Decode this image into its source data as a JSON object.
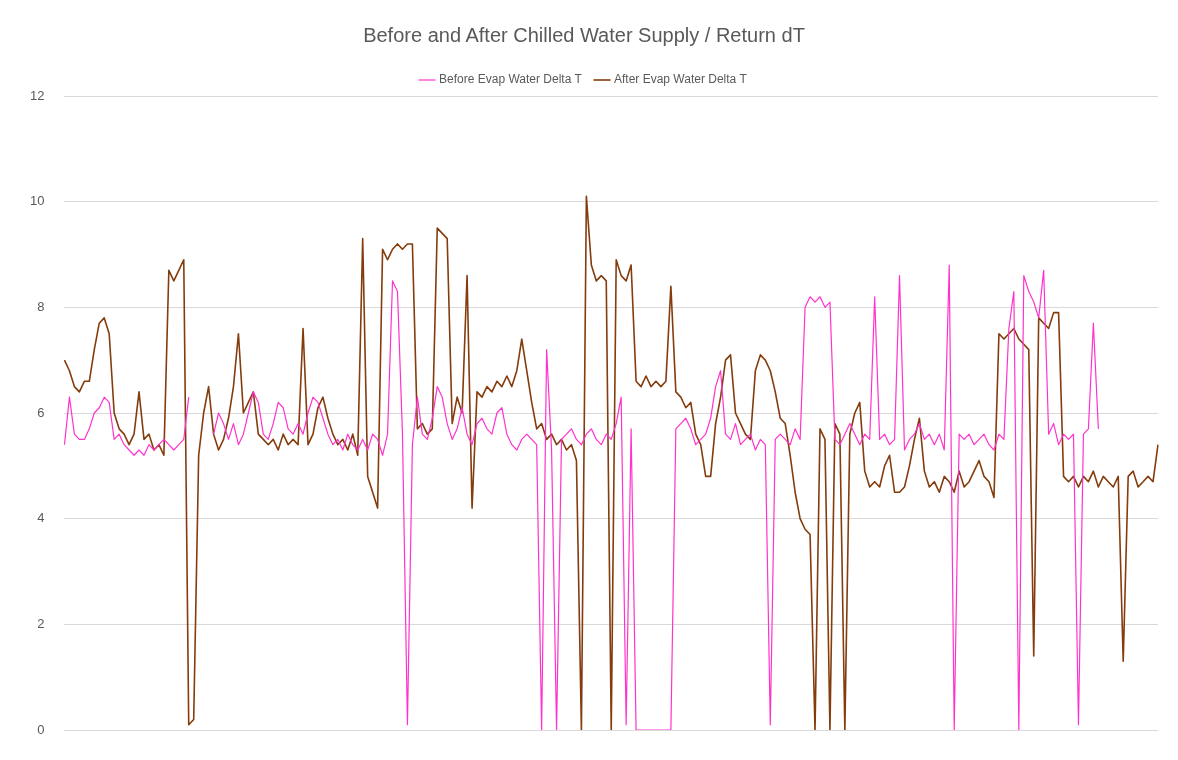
{
  "chart_data": {
    "type": "line",
    "title": "Before and After Chilled Water Supply / Return dT",
    "categories": [
      null,
      null,
      null,
      null,
      null,
      null,
      null,
      null,
      null,
      null,
      null,
      null,
      null,
      null,
      null,
      null,
      null,
      null,
      null,
      null,
      null,
      null,
      null,
      null,
      null,
      null,
      null,
      null,
      null,
      null,
      null,
      null,
      null,
      null,
      null,
      null,
      null,
      null,
      null,
      null,
      null,
      null,
      null,
      null,
      null,
      null,
      null,
      null,
      null,
      null,
      null,
      null,
      null,
      null,
      null,
      null,
      null,
      null,
      null,
      null,
      null,
      null,
      null,
      null,
      null,
      null,
      null,
      null,
      null,
      null,
      null,
      null,
      null,
      null,
      null,
      null,
      null,
      null,
      null,
      null,
      null,
      null,
      null,
      null,
      null,
      null,
      null,
      null,
      null,
      null,
      null,
      null,
      null,
      null,
      null,
      null,
      null,
      null,
      null,
      null,
      null,
      null,
      null,
      null,
      null,
      null,
      null,
      null,
      null,
      null,
      null,
      null,
      null,
      null,
      null,
      null,
      null,
      null,
      null,
      null,
      null,
      null,
      null,
      null,
      null,
      null,
      null,
      null,
      null,
      null,
      null,
      null,
      null,
      null,
      null,
      null,
      null,
      null,
      null,
      null,
      null,
      null,
      null,
      null,
      null,
      null,
      null,
      null,
      null,
      null,
      null,
      null,
      null,
      null,
      null,
      null,
      null,
      null,
      null,
      null,
      null,
      null,
      null,
      null,
      null,
      null,
      null,
      null,
      null,
      null,
      null,
      null,
      null,
      null,
      null,
      null,
      null,
      null,
      null,
      null,
      null,
      null,
      null,
      null,
      null,
      null,
      null,
      null,
      null,
      null,
      null,
      null,
      null,
      null,
      null,
      null,
      null,
      null,
      null,
      null,
      null,
      null,
      null,
      null,
      null,
      null,
      null,
      null,
      null,
      null,
      null,
      null,
      null,
      null,
      null,
      null,
      null,
      null,
      null,
      null,
      null
    ],
    "series": [
      {
        "name": "Before Evap Water Delta T",
        "color": "#ff33cc",
        "values": [
          5.4,
          6.3,
          5.6,
          5.5,
          5.5,
          5.7,
          6.0,
          6.1,
          6.3,
          6.2,
          5.5,
          5.6,
          5.4,
          5.3,
          5.2,
          5.3,
          5.2,
          5.4,
          5.3,
          5.4,
          5.5,
          5.4,
          5.3,
          5.4,
          5.5,
          6.3,
          null,
          null,
          null,
          null,
          5.6,
          6.0,
          5.8,
          5.5,
          5.8,
          5.4,
          5.6,
          6.0,
          6.4,
          6.2,
          5.6,
          5.5,
          5.8,
          6.2,
          6.1,
          5.7,
          5.6,
          5.8,
          5.6,
          6.0,
          6.3,
          6.2,
          5.9,
          5.6,
          5.4,
          5.5,
          5.3,
          5.6,
          5.4,
          5.3,
          5.5,
          5.3,
          5.6,
          5.5,
          5.2,
          5.6,
          8.5,
          8.3,
          5.6,
          0.1,
          5.4,
          6.3,
          5.6,
          5.5,
          5.9,
          6.5,
          6.3,
          5.8,
          5.5,
          5.7,
          6.1,
          5.6,
          5.4,
          5.8,
          5.9,
          5.7,
          5.6,
          6.0,
          6.1,
          5.6,
          5.4,
          5.3,
          5.5,
          5.6,
          5.5,
          5.4,
          0.0,
          7.2,
          5.3,
          0.0,
          5.5,
          5.6,
          5.7,
          5.5,
          5.4,
          5.6,
          5.7,
          5.5,
          5.4,
          5.6,
          5.5,
          5.8,
          6.3,
          0.1,
          5.7,
          0.0,
          0.0,
          0.0,
          0.0,
          0.0,
          0.0,
          0.0,
          0.0,
          5.7,
          5.8,
          5.9,
          5.7,
          5.4,
          5.5,
          5.6,
          5.9,
          6.5,
          6.8,
          5.6,
          5.5,
          5.8,
          5.4,
          5.5,
          5.6,
          5.3,
          5.5,
          5.4,
          0.1,
          5.5,
          5.6,
          5.5,
          5.4,
          5.7,
          5.5,
          8.0,
          8.2,
          8.1,
          8.2,
          8.0,
          8.1,
          5.5,
          5.4,
          5.6,
          5.8,
          5.6,
          5.4,
          5.6,
          5.5,
          8.2,
          5.5,
          5.6,
          5.4,
          5.5,
          8.6,
          5.3,
          5.5,
          5.6,
          5.8,
          5.5,
          5.6,
          5.4,
          5.6,
          5.3,
          8.8,
          0.0,
          5.6,
          5.5,
          5.6,
          5.4,
          5.5,
          5.6,
          5.4,
          5.3,
          5.6,
          5.5,
          7.6,
          8.3,
          0.0,
          8.6,
          8.3,
          8.1,
          7.8,
          8.7,
          5.6,
          5.8,
          5.4,
          5.6,
          5.5,
          5.6,
          0.1,
          5.6,
          5.7,
          7.7,
          5.7,
          null,
          null,
          null,
          null,
          null,
          null,
          null,
          null,
          null,
          null,
          null,
          null
        ]
      },
      {
        "name": "After Evap Water Delta T",
        "color": "#843c0c",
        "values": [
          7.0,
          6.8,
          6.5,
          6.4,
          6.6,
          6.6,
          7.2,
          7.7,
          7.8,
          7.5,
          6.0,
          5.7,
          5.6,
          5.4,
          5.6,
          6.4,
          5.5,
          5.6,
          5.3,
          5.4,
          5.2,
          8.7,
          8.5,
          8.7,
          8.9,
          0.1,
          0.2,
          5.2,
          6.0,
          6.5,
          5.6,
          5.3,
          5.5,
          5.9,
          6.5,
          7.5,
          6.0,
          6.2,
          6.4,
          5.6,
          5.5,
          5.4,
          5.5,
          5.3,
          5.6,
          5.4,
          5.5,
          5.4,
          7.6,
          5.4,
          5.6,
          6.1,
          6.3,
          5.9,
          5.6,
          5.4,
          5.5,
          5.3,
          5.6,
          5.2,
          9.3,
          4.8,
          4.5,
          4.2,
          9.1,
          8.9,
          9.1,
          9.2,
          9.1,
          9.2,
          9.2,
          5.7,
          5.8,
          5.6,
          5.7,
          9.5,
          9.4,
          9.3,
          5.8,
          6.3,
          6.0,
          8.6,
          4.2,
          6.4,
          6.3,
          6.5,
          6.4,
          6.6,
          6.5,
          6.7,
          6.5,
          6.8,
          7.4,
          6.8,
          6.2,
          5.7,
          5.8,
          5.5,
          5.6,
          5.4,
          5.5,
          5.3,
          5.4,
          5.1,
          0.0,
          10.1,
          8.8,
          8.5,
          8.6,
          8.5,
          0.0,
          8.9,
          8.6,
          8.5,
          8.8,
          6.6,
          6.5,
          6.7,
          6.5,
          6.6,
          6.5,
          6.6,
          8.4,
          6.4,
          6.3,
          6.1,
          6.2,
          5.6,
          5.4,
          4.8,
          4.8,
          5.8,
          6.3,
          7.0,
          7.1,
          6.0,
          5.8,
          5.6,
          5.5,
          6.8,
          7.1,
          7.0,
          6.8,
          6.4,
          5.9,
          5.8,
          5.2,
          4.5,
          4.0,
          3.8,
          3.7,
          0.0,
          5.7,
          5.5,
          0.0,
          5.8,
          5.6,
          0.0,
          5.6,
          6.0,
          6.2,
          4.9,
          4.6,
          4.7,
          4.6,
          5.0,
          5.2,
          4.5,
          4.5,
          4.6,
          5.0,
          5.5,
          5.9,
          4.9,
          4.6,
          4.7,
          4.5,
          4.8,
          4.7,
          4.5,
          4.9,
          4.6,
          4.7,
          4.9,
          5.1,
          4.8,
          4.7,
          4.4,
          7.5,
          7.4,
          7.5,
          7.6,
          7.4,
          7.3,
          7.2,
          1.4,
          7.8,
          7.7,
          7.6,
          7.9,
          7.9,
          4.8,
          4.7,
          4.8,
          4.6,
          4.8,
          4.7,
          4.9,
          4.6,
          4.8,
          4.7,
          4.6,
          4.8,
          1.3,
          4.8,
          4.9,
          4.6,
          4.7,
          4.8,
          4.7,
          5.4
        ]
      }
    ],
    "ylim": [
      0,
      12
    ],
    "yticks": [
      0,
      2,
      4,
      6,
      8,
      10,
      12
    ],
    "grid": "y",
    "legend": "top",
    "marker": "none",
    "line_style": "solid",
    "tick_labels": "y"
  }
}
